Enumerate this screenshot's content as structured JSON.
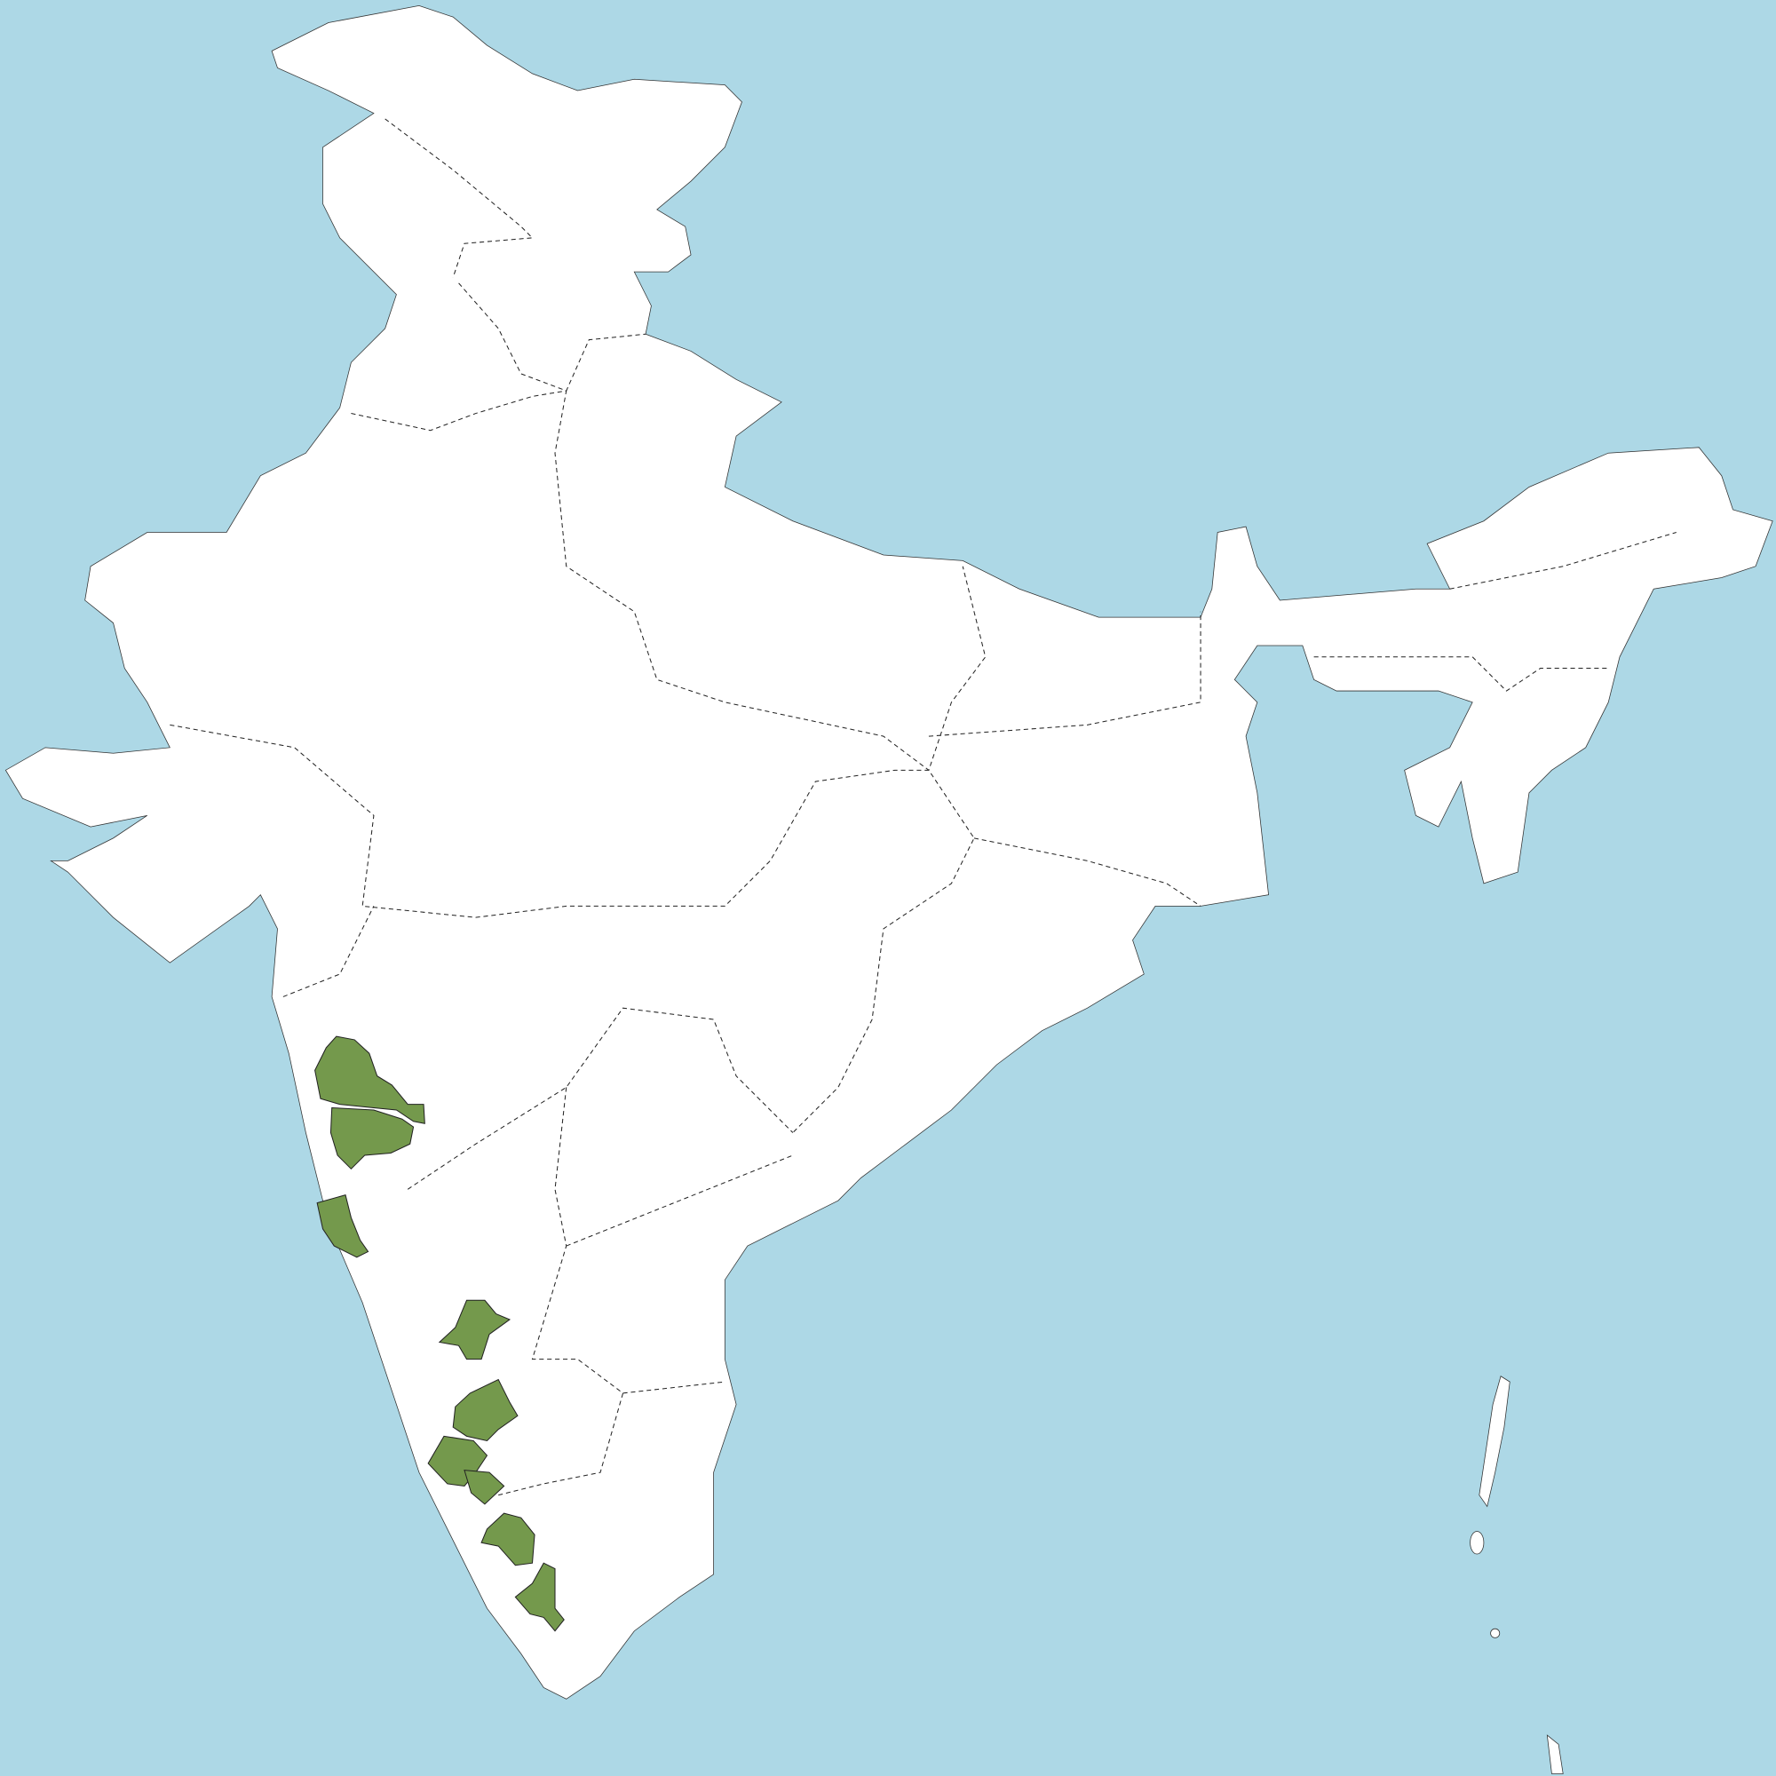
{
  "map": {
    "colors": {
      "water": "#ADD8E6",
      "land": "#FFFFFF",
      "highlight": "#74994C",
      "border": "#222222"
    },
    "highlighted_regions": [
      {
        "name": "region-1"
      },
      {
        "name": "region-2"
      },
      {
        "name": "region-3"
      },
      {
        "name": "region-4"
      },
      {
        "name": "region-5"
      },
      {
        "name": "region-6"
      },
      {
        "name": "region-7"
      },
      {
        "name": "region-8"
      }
    ]
  }
}
